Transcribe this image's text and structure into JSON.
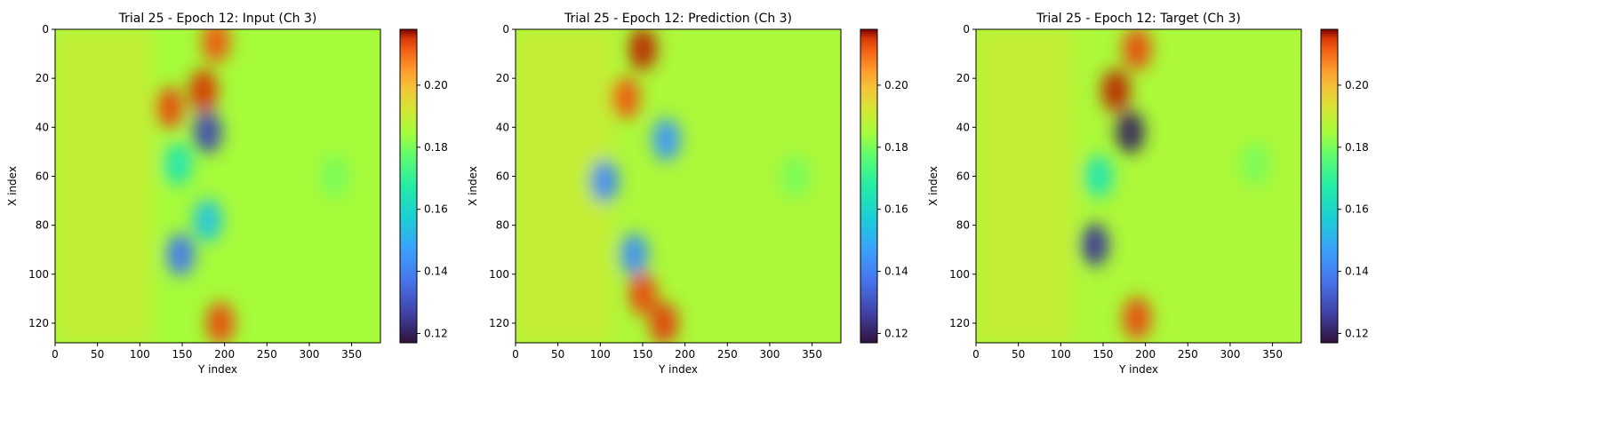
{
  "figure": {
    "panels": [
      {
        "title": "Trial 25 - Epoch 12: Input (Ch 3)",
        "xlabel": "Y index",
        "ylabel": "X index",
        "xticks": [
          0,
          50,
          100,
          150,
          200,
          250,
          300,
          350
        ],
        "yticks": [
          0,
          20,
          40,
          60,
          80,
          100,
          120
        ],
        "colorbar_ticks": [
          "0.12",
          "0.14",
          "0.16",
          "0.18",
          "0.20"
        ]
      },
      {
        "title": "Trial 25 - Epoch 12: Prediction (Ch 3)",
        "xlabel": "Y index",
        "ylabel": "X index",
        "xticks": [
          0,
          50,
          100,
          150,
          200,
          250,
          300,
          350
        ],
        "yticks": [
          0,
          20,
          40,
          60,
          80,
          100,
          120
        ],
        "colorbar_ticks": [
          "0.12",
          "0.14",
          "0.16",
          "0.18",
          "0.20"
        ]
      },
      {
        "title": "Trial 25 - Epoch 12: Target (Ch 3)",
        "xlabel": "Y index",
        "ylabel": "X index",
        "xticks": [
          0,
          50,
          100,
          150,
          200,
          250,
          300,
          350
        ],
        "yticks": [
          0,
          20,
          40,
          60,
          80,
          100,
          120
        ],
        "colorbar_ticks": [
          "0.12",
          "0.14",
          "0.16",
          "0.18",
          "0.20"
        ]
      }
    ]
  },
  "chart_data": [
    {
      "type": "heatmap",
      "title": "Trial 25 - Epoch 12: Input (Ch 3)",
      "xlabel": "Y index",
      "ylabel": "X index",
      "xlim": [
        0,
        384
      ],
      "ylim": [
        128,
        0
      ],
      "colormap": "turbo",
      "vmin": 0.117,
      "vmax": 0.218,
      "background_value": 0.185,
      "features": [
        {
          "y": 190,
          "x": 5,
          "value": 0.212
        },
        {
          "y": 175,
          "x": 25,
          "value": 0.215
        },
        {
          "y": 135,
          "x": 32,
          "value": 0.213
        },
        {
          "y": 180,
          "x": 42,
          "value": 0.128
        },
        {
          "y": 145,
          "x": 55,
          "value": 0.165
        },
        {
          "y": 180,
          "x": 78,
          "value": 0.155
        },
        {
          "y": 148,
          "x": 92,
          "value": 0.138
        },
        {
          "y": 195,
          "x": 120,
          "value": 0.213
        },
        {
          "y": 330,
          "x": 60,
          "value": 0.18
        }
      ]
    },
    {
      "type": "heatmap",
      "title": "Trial 25 - Epoch 12: Prediction (Ch 3)",
      "xlabel": "Y index",
      "ylabel": "X index",
      "xlim": [
        0,
        384
      ],
      "ylim": [
        128,
        0
      ],
      "colormap": "turbo",
      "vmin": 0.117,
      "vmax": 0.218,
      "background_value": 0.186,
      "features": [
        {
          "y": 150,
          "x": 8,
          "value": 0.216
        },
        {
          "y": 130,
          "x": 28,
          "value": 0.212
        },
        {
          "y": 178,
          "x": 45,
          "value": 0.145
        },
        {
          "y": 105,
          "x": 62,
          "value": 0.142
        },
        {
          "y": 140,
          "x": 92,
          "value": 0.143
        },
        {
          "y": 150,
          "x": 108,
          "value": 0.213
        },
        {
          "y": 175,
          "x": 120,
          "value": 0.214
        },
        {
          "y": 330,
          "x": 60,
          "value": 0.18
        }
      ]
    },
    {
      "type": "heatmap",
      "title": "Trial 25 - Epoch 12: Target (Ch 3)",
      "xlabel": "Y index",
      "ylabel": "X index",
      "xlim": [
        0,
        384
      ],
      "ylim": [
        128,
        0
      ],
      "colormap": "turbo",
      "vmin": 0.117,
      "vmax": 0.218,
      "background_value": 0.186,
      "features": [
        {
          "y": 190,
          "x": 8,
          "value": 0.213
        },
        {
          "y": 165,
          "x": 25,
          "value": 0.216
        },
        {
          "y": 182,
          "x": 42,
          "value": 0.12
        },
        {
          "y": 145,
          "x": 60,
          "value": 0.165
        },
        {
          "y": 140,
          "x": 88,
          "value": 0.125
        },
        {
          "y": 190,
          "x": 118,
          "value": 0.213
        },
        {
          "y": 330,
          "x": 55,
          "value": 0.18
        }
      ]
    }
  ]
}
